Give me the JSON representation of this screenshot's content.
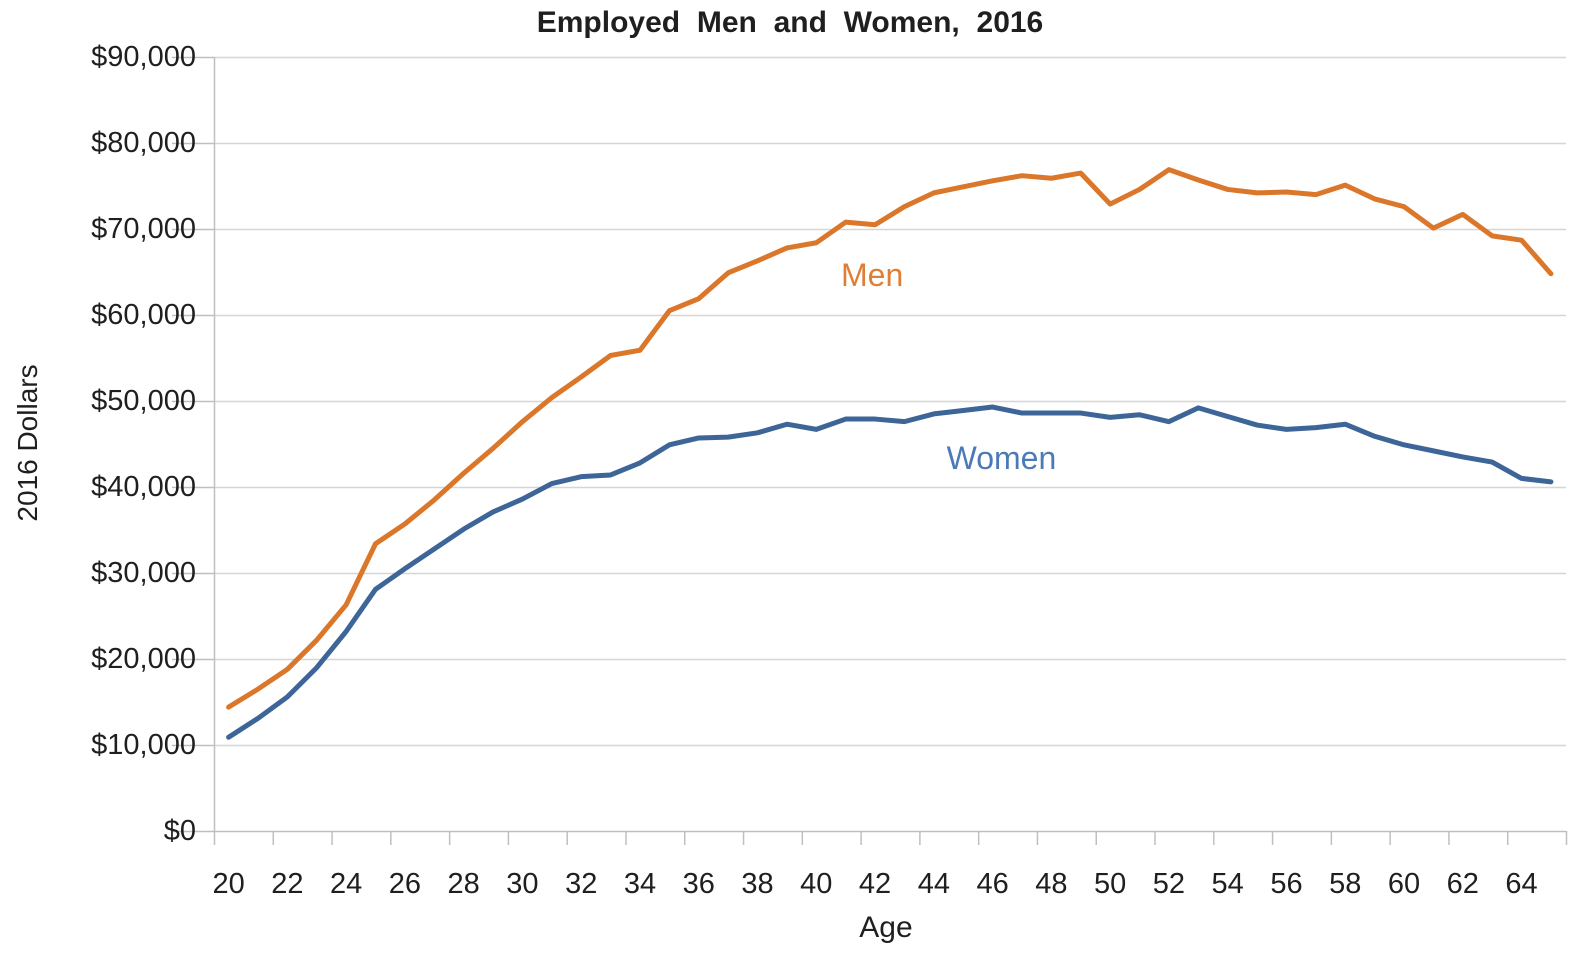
{
  "chart_data": {
    "type": "line",
    "title": "Employed Men and Women, 2016",
    "xlabel": "Age",
    "ylabel": "2016 Dollars",
    "ylim": [
      0,
      90000
    ],
    "ytick_step": 10000,
    "grid": true,
    "legend": "inline-annotations",
    "ytick_labels": [
      "$0",
      "$10,000",
      "$20,000",
      "$30,000",
      "$40,000",
      "$50,000",
      "$60,000",
      "$70,000",
      "$80,000",
      "$90,000"
    ],
    "xtick_labels": [
      "20",
      "22",
      "24",
      "26",
      "28",
      "30",
      "32",
      "34",
      "36",
      "38",
      "40",
      "42",
      "44",
      "46",
      "48",
      "50",
      "52",
      "54",
      "56",
      "58",
      "60",
      "62",
      "64"
    ],
    "x": [
      20,
      21,
      22,
      23,
      24,
      25,
      26,
      27,
      28,
      29,
      30,
      31,
      32,
      33,
      34,
      35,
      36,
      37,
      38,
      39,
      40,
      41,
      42,
      43,
      44,
      45,
      46,
      47,
      48,
      49,
      50,
      51,
      52,
      53,
      54,
      55,
      56,
      57,
      58,
      59,
      60,
      61,
      62,
      63,
      64,
      65
    ],
    "series": [
      {
        "name": "Men",
        "color": "#DB772B",
        "label_color": "#E07E35",
        "values": [
          14400,
          16500,
          18800,
          22200,
          26300,
          33400,
          35700,
          38500,
          41600,
          44500,
          47600,
          50400,
          52800,
          55300,
          55900,
          60500,
          61900,
          64900,
          66300,
          67800,
          68400,
          70800,
          70500,
          72600,
          74200,
          74900,
          75600,
          76200,
          75900,
          76500,
          72900,
          74600,
          76900,
          75700,
          74600,
          74200,
          74300,
          74000,
          75100,
          73500,
          72600,
          70100,
          71700,
          69200,
          68700,
          64800
        ]
      },
      {
        "name": "Women",
        "color": "#3D6598",
        "label_color": "#4C7AB6",
        "values": [
          10900,
          13100,
          15600,
          19000,
          23200,
          28100,
          30500,
          32800,
          35100,
          37100,
          38600,
          40400,
          41200,
          41400,
          42800,
          44900,
          45700,
          45800,
          46300,
          47300,
          46700,
          47900,
          47900,
          47600,
          48500,
          48900,
          49300,
          48600,
          48600,
          48600,
          48100,
          48400,
          47600,
          49200,
          48200,
          47200,
          46700,
          46900,
          47300,
          45900,
          44900,
          44200,
          43500,
          42900,
          41000,
          40600
        ]
      }
    ],
    "annotations": [
      {
        "series": "Men",
        "age": 41.9,
        "value": 64600
      },
      {
        "series": "Women",
        "age": 46.3,
        "value": 43400
      }
    ],
    "style": {
      "grid_color": "#D6D6D6",
      "axis_color": "#BFBFBF",
      "text_color": "#1F1F1F",
      "background": "#FFFFFF"
    }
  }
}
